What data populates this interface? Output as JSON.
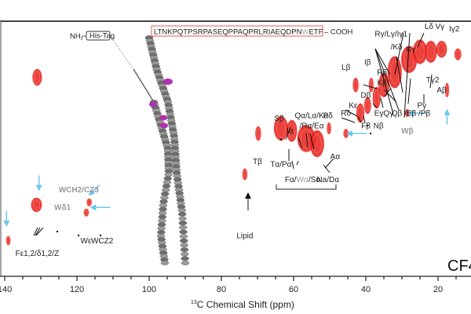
{
  "chart_data": {
    "type": "scatter",
    "title": "",
    "xlabel_sup": "13",
    "xlabel": "C Chemical Shift (ppm)",
    "x_axis_reversed": true,
    "xlim": [
      141,
      9
    ],
    "x_ticks": [
      140,
      120,
      100,
      80,
      60,
      40,
      20
    ],
    "x_minor_step": 5,
    "corner_label": "CF4",
    "sequence_box": {
      "nterm": "NH",
      "nterm_sub": "2",
      "tag": "His-Tag",
      "seq_before": "LTNKPQTPSRPASEQPPAQPRLRIAEQDPN",
      "seq_highlight": "W",
      "seq_after": "ETF",
      "cterm": "– COOH"
    },
    "colors": {
      "peak": "#e8201a",
      "arrow": "#6ec6ea",
      "helix": "#8a8a8a",
      "highlight_residue": "#b030b0",
      "grey_label": "#9a9a9a",
      "seq_box": "#e85a5a"
    },
    "peaks": [
      {
        "x": 131,
        "y": 0.22,
        "w": 2.2,
        "h": 0.06
      },
      {
        "x": 131.2,
        "y": 0.72,
        "w": 2.6,
        "h": 0.05
      },
      {
        "x": 139,
        "y": 0.86,
        "w": 0.8,
        "h": 0.03
      },
      {
        "x": 117.4,
        "y": 0.75,
        "w": 1.0,
        "h": 0.025
      },
      {
        "x": 116.6,
        "y": 0.71,
        "w": 1.0,
        "h": 0.025
      },
      {
        "x": 73.5,
        "y": 0.6,
        "w": 1.0,
        "h": 0.04
      },
      {
        "x": 69.8,
        "y": 0.44,
        "w": 1.2,
        "h": 0.05
      },
      {
        "x": 63.5,
        "y": 0.42,
        "w": 3.5,
        "h": 0.09
      },
      {
        "x": 60.5,
        "y": 0.43,
        "w": 2.5,
        "h": 0.08
      },
      {
        "x": 56.5,
        "y": 0.46,
        "w": 4.5,
        "h": 0.1
      },
      {
        "x": 53.5,
        "y": 0.48,
        "w": 3.5,
        "h": 0.1
      },
      {
        "x": 50.2,
        "y": 0.42,
        "w": 0.8,
        "h": 0.04
      },
      {
        "x": 45.5,
        "y": 0.44,
        "w": 1.0,
        "h": 0.03
      },
      {
        "x": 42.8,
        "y": 0.25,
        "w": 1.2,
        "h": 0.05
      },
      {
        "x": 38.5,
        "y": 0.25,
        "w": 0.9,
        "h": 0.05
      },
      {
        "x": 41.5,
        "y": 0.36,
        "w": 1.8,
        "h": 0.07
      },
      {
        "x": 39.5,
        "y": 0.33,
        "w": 1.5,
        "h": 0.06
      },
      {
        "x": 37,
        "y": 0.3,
        "w": 1.8,
        "h": 0.08
      },
      {
        "x": 35,
        "y": 0.25,
        "w": 2.5,
        "h": 0.09
      },
      {
        "x": 32,
        "y": 0.2,
        "w": 3.5,
        "h": 0.12
      },
      {
        "x": 28,
        "y": 0.15,
        "w": 4.0,
        "h": 0.1
      },
      {
        "x": 25,
        "y": 0.12,
        "w": 3.5,
        "h": 0.09
      },
      {
        "x": 22,
        "y": 0.12,
        "w": 3.0,
        "h": 0.08
      },
      {
        "x": 19,
        "y": 0.11,
        "w": 2.5,
        "h": 0.06
      },
      {
        "x": 14.5,
        "y": 0.13,
        "w": 1.5,
        "h": 0.04
      },
      {
        "x": 28.5,
        "y": 0.36,
        "w": 0.8,
        "h": 0.025
      },
      {
        "x": 17.5,
        "y": 0.27,
        "w": 0.7,
        "h": 0.05
      }
    ],
    "labels": [
      {
        "text": "Lδ",
        "x": 22.5,
        "y": 0.03
      },
      {
        "text": "Vγ",
        "x": 19.5,
        "y": 0.03
      },
      {
        "text": "Iγ2",
        "x": 15.5,
        "y": 0.04
      },
      {
        "text": "I",
        "x": 10.5,
        "y": 0.04
      },
      {
        "text": "Rγ/Lγ/Iγ1",
        "x": 33,
        "y": 0.06
      },
      {
        "text": "/Kδ",
        "x": 31.5,
        "y": 0.11
      },
      {
        "text": "Kγ",
        "x": 27.5,
        "y": 0.12
      },
      {
        "text": "Lβ",
        "x": 45.5,
        "y": 0.19
      },
      {
        "text": "Iβ",
        "x": 39.5,
        "y": 0.17
      },
      {
        "text": "Rβ",
        "x": 35.5,
        "y": 0.21
      },
      {
        "text": "Kβ",
        "x": 35.5,
        "y": 0.25
      },
      {
        "text": "Tγ2",
        "x": 21.5,
        "y": 0.24
      },
      {
        "text": "Aβ",
        "x": 19,
        "y": 0.28
      },
      {
        "text": "Dβ",
        "x": 40,
        "y": 0.3
      },
      {
        "text": "Pγ",
        "x": 24.5,
        "y": 0.34
      },
      {
        "text": "Kε",
        "x": 43.5,
        "y": 0.34
      },
      {
        "text": "Rδ",
        "x": 45.5,
        "y": 0.37
      },
      {
        "text": "EγQγ",
        "x": 35,
        "y": 0.37
      },
      {
        "text": "Qβ /Eβ /Pβ",
        "x": 27.5,
        "y": 0.37
      },
      {
        "text": "Fβ",
        "x": 40,
        "y": 0.42
      },
      {
        "text": "Nβ",
        "x": 36.5,
        "y": 0.42
      },
      {
        "text": "Pδ",
        "x": 50.5,
        "y": 0.38
      },
      {
        "text": "Sβ",
        "x": 64,
        "y": 0.39
      },
      {
        "text": "Qα/Lα/Kα",
        "x": 55,
        "y": 0.38
      },
      {
        "text": "/Rα/Eα",
        "x": 55,
        "y": 0.42
      },
      {
        "text": "Iα",
        "x": 61,
        "y": 0.44
      },
      {
        "text": "Tβ",
        "x": 70,
        "y": 0.56
      },
      {
        "text": "Tα/Pα",
        "x": 63.5,
        "y": 0.57
      },
      {
        "text": "Aα",
        "x": 48.5,
        "y": 0.54
      },
      {
        "text": "Na/Dα",
        "x": 50.5,
        "y": 0.63
      },
      {
        "text": "Lipid",
        "x": 73.5,
        "y": 0.85
      },
      {
        "text": "Fε1,2/δ1,2/Z",
        "x": 131,
        "y": 0.92
      },
      {
        "text": "Wε",
        "x": 117.5,
        "y": 0.87
      },
      {
        "text": "WCZ2",
        "x": 113,
        "y": 0.87
      }
    ],
    "grey_labels": [
      {
        "text": "WCH2/CZ3",
        "x": 119.5,
        "y": 0.67
      },
      {
        "text": "Wδ1",
        "x": 124,
        "y": 0.74
      },
      {
        "text": "Wβ",
        "x": 28.5,
        "y": 0.44
      }
    ],
    "mixed_label": {
      "pre": "Fα/",
      "grey": "Wα",
      "post": "/Sα",
      "x": 57.5,
      "y": 0.63
    },
    "arrows_blue": [
      {
        "x": 130.5,
        "y": 0.66,
        "dir": "down"
      },
      {
        "x": 139.5,
        "y": 0.8,
        "dir": "down"
      },
      {
        "x": 116.5,
        "y": 0.68,
        "dir": "down-left"
      },
      {
        "x": 116,
        "y": 0.73,
        "dir": "left"
      },
      {
        "x": 17.5,
        "y": 0.35,
        "dir": "up"
      },
      {
        "x": 28,
        "y": 0.36,
        "dir": "left"
      },
      {
        "x": 45,
        "y": 0.44,
        "dir": "left"
      }
    ]
  }
}
